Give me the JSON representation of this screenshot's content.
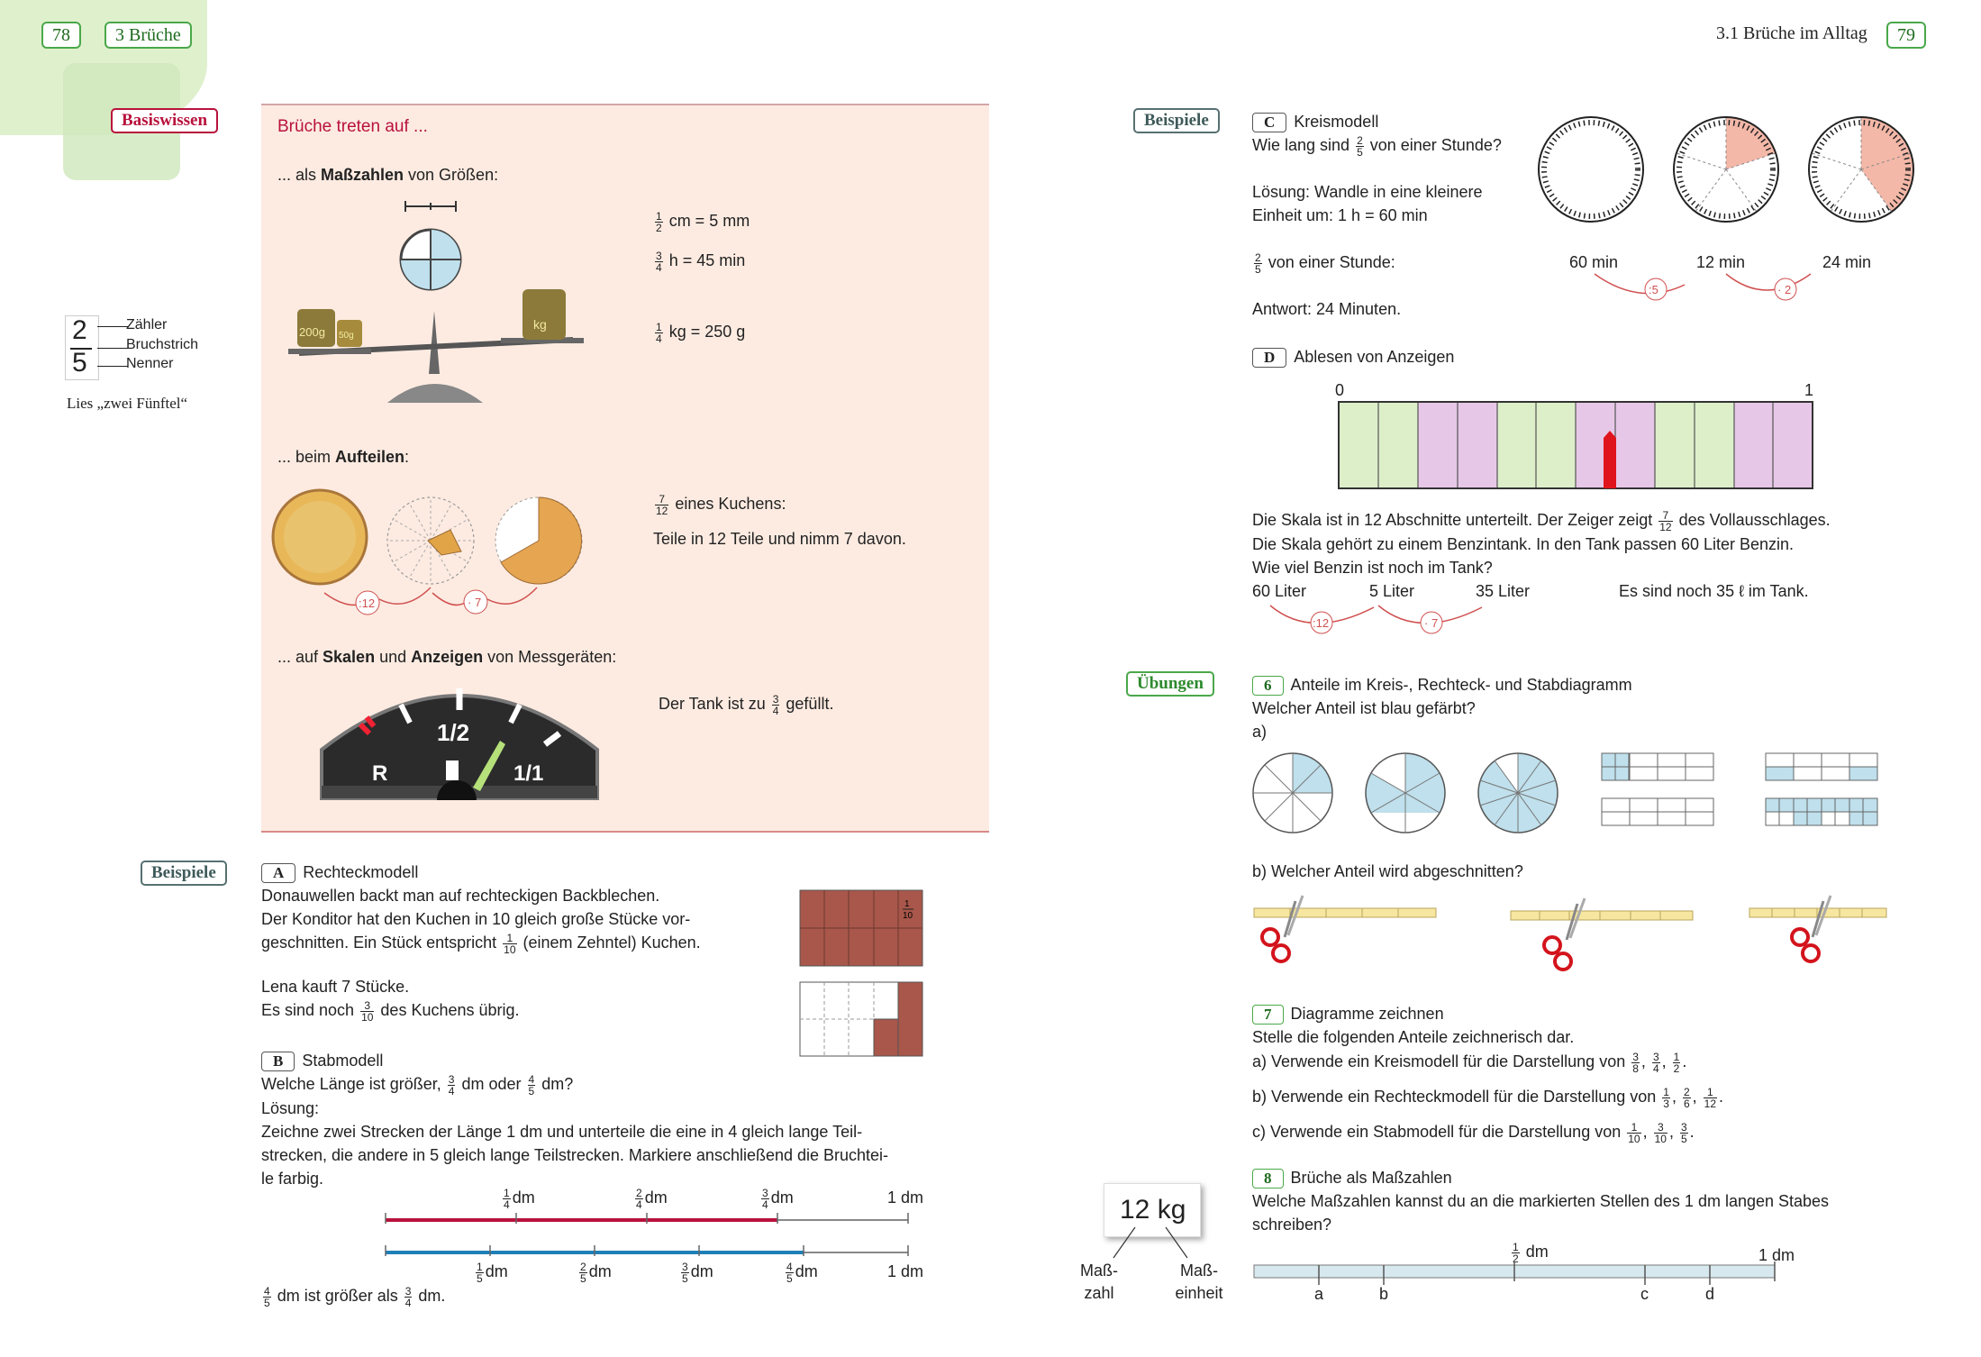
{
  "header": {
    "left_page": "78",
    "left_chapter": "3 Brüche",
    "right_chapter": "3.1 Brüche im Alltag",
    "right_page": "79"
  },
  "tags": {
    "basiswissen": "Basiswissen",
    "beispiele": "Beispiele",
    "uebungen": "Übungen"
  },
  "fraction_legend": {
    "num": "2",
    "den": "5",
    "zaehler": "Zähler",
    "bruchstrich": "Bruchstrich",
    "nenner": "Nenner",
    "read": "Lies „zwei Fünftel“"
  },
  "basis": {
    "title": "Brüche treten auf ...",
    "mass_intro_pre": "... als ",
    "mass_intro_bold": "Maßzahlen",
    "mass_intro_post": " von Größen:",
    "eq1": " cm = 5 mm",
    "eq2": " h = 45 min",
    "eq3": " kg = 250 g",
    "w200": "200g",
    "w50": "50g",
    "wkg": "kg",
    "auf_pre": "... beim ",
    "auf_bold": "Aufteilen",
    "auf_post": ":",
    "kuchen": " eines Kuchens:",
    "teile": "Teile in 12 Teile und nimm 7 davon.",
    "op12": ":12",
    "op7": "· 7",
    "skalen_pre": "... auf ",
    "skalen_b1": "Skalen",
    "skalen_mid": " und ",
    "skalen_b2": "Anzeigen",
    "skalen_post": " von Messgeräten:",
    "tank": "Der Tank ist zu ",
    "tank_post": " gefüllt.",
    "gauge_half": "1/2",
    "gauge_r": "R",
    "gauge_full": "1/1"
  },
  "exA": {
    "label": "A",
    "title": "Rechteckmodell",
    "l1": "Donauwellen backt man auf rechteckigen Backblechen.",
    "l2": "Der Konditor hat den Kuchen in 10 gleich große Stücke vor-",
    "l3a": "geschnitten. Ein Stück entspricht ",
    "l3b": " (einem Zehntel) Kuchen.",
    "l4": "Lena kauft 7 Stücke.",
    "l5a": "Es sind noch ",
    "l5b": " des Kuchens übrig."
  },
  "exB": {
    "label": "B",
    "title": "Stabmodell",
    "q_pre": "Welche Länge ist größer, ",
    "q_mid": " dm oder ",
    "q_post": " dm?",
    "loesung": "Lösung:",
    "l1": "Zeichne zwei Strecken der Länge 1 dm und unterteile die eine in 4 gleich lange Teil-",
    "l2": "strecken, die andere in 5 gleich lange Teilstrecken. Markiere anschließend die Bruchtei-",
    "l3": "le farbig.",
    "dm": "dm",
    "one_dm": "1 dm",
    "answer_pre": " dm ist größer als ",
    "answer_post": " dm."
  },
  "exC": {
    "label": "C",
    "title": "Kreismodell",
    "q_pre": "Wie lang sind ",
    "q_post": " von einer Stunde?",
    "l1": "Lösung: Wandle in eine kleinere",
    "l2": "Einheit um: 1 h = 60 min",
    "l3": " von einer Stunde:",
    "v1": "60 min",
    "v2": "12 min",
    "v3": "24 min",
    "op5": ":5",
    "op2": "· 2",
    "antwort": "Antwort: 24 Minuten."
  },
  "exD": {
    "label": "D",
    "title": "Ablesen von Anzeigen",
    "zero": "0",
    "one": "1",
    "l1a": "Die Skala ist in 12 Abschnitte unterteilt. Der Zeiger zeigt ",
    "l1b": " des Vollausschlages.",
    "l2": "Die Skala gehört zu einem Benzintank. In den Tank passen 60 Liter Benzin.",
    "l3": "Wie viel Benzin ist noch im Tank?",
    "v1": "60 Liter",
    "v2": "5 Liter",
    "v3": "35 Liter",
    "result": "Es sind noch 35 ℓ im Tank.",
    "op12": ":12",
    "op7": "· 7"
  },
  "ex6": {
    "num": "6",
    "title": "Anteile im Kreis-, Rechteck- und Stabdiagramm",
    "q": "Welcher Anteil ist blau gefärbt?",
    "a": "a)",
    "b": "b) Welcher Anteil wird abgeschnitten?"
  },
  "ex7": {
    "num": "7",
    "title": "Diagramme zeichnen",
    "intro": "Stelle die folgenden Anteile zeichnerisch dar.",
    "a": "a) Verwende ein Kreismodell für die Darstellung von ",
    "b": "b) Verwende ein Rechteckmodell für die Darstellung von ",
    "c": "c) Verwende ein Stabmodell für die Darstellung von "
  },
  "ex8": {
    "num": "8",
    "title": "Brüche als Maßzahlen",
    "l1": "Welche Maßzahlen kannst du an die markierten Stellen des 1 dm langen Stabes",
    "l2": "schreiben?",
    "half_dm": " dm",
    "one_dm": "1 dm",
    "a": "a",
    "b": "b",
    "c": "c",
    "d": "d"
  },
  "kg_card": {
    "value": "12 kg",
    "mass1": "Maß-",
    "mass2": "zahl",
    "unit1": "Maß-",
    "unit2": "einheit"
  },
  "colors": {
    "green_page": "#d7ecc3",
    "pink_box": "#fdebe1",
    "accent_red": "#b8123c",
    "bar_green": "#dcefc9",
    "bar_pink": "#e7c7e7",
    "brown": "#a8574a",
    "light_blue": "#bfe0ec"
  },
  "icons": [
    "scissors-icon",
    "clock-icon",
    "fuel-pump-icon",
    "scale-icon",
    "cake-icon"
  ]
}
